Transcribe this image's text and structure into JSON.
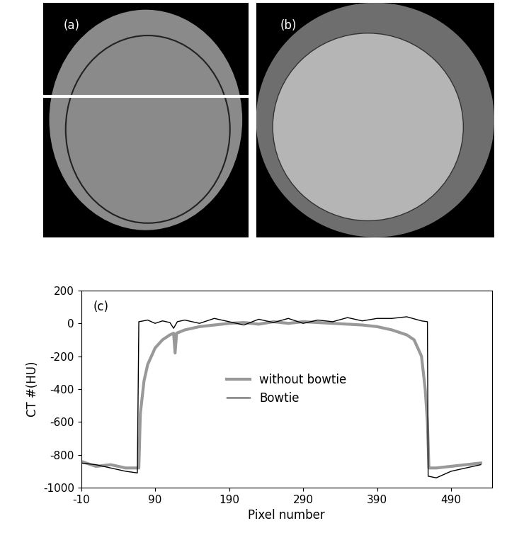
{
  "images": [
    {
      "label": "(a)"
    },
    {
      "label": "(b)"
    }
  ],
  "chart_data": {
    "type": "line",
    "panel_label": "(c)",
    "x_label": "Pixel number",
    "y_label": "CT #(HU)",
    "xlim": [
      -10,
      545
    ],
    "xticks": [
      -10,
      90,
      190,
      290,
      390,
      490
    ],
    "ylim": [
      -1000,
      200
    ],
    "yticks": [
      -1000,
      -800,
      -600,
      -400,
      -200,
      0,
      200
    ],
    "legend": "center",
    "series": [
      {
        "name": "without bowtie",
        "color": "#999999",
        "x": [
          -10,
          10,
          30,
          50,
          68,
          70,
          75,
          80,
          90,
          100,
          110,
          115,
          117,
          119,
          130,
          150,
          170,
          190,
          210,
          230,
          250,
          270,
          290,
          310,
          330,
          350,
          370,
          390,
          410,
          430,
          440,
          450,
          455,
          458,
          460,
          470,
          490,
          510,
          530
        ],
        "values": [
          -840,
          -870,
          -860,
          -880,
          -880,
          -550,
          -350,
          -250,
          -150,
          -100,
          -70,
          -60,
          -180,
          -60,
          -40,
          -20,
          -10,
          0,
          5,
          -5,
          10,
          0,
          10,
          5,
          0,
          -5,
          -10,
          -20,
          -40,
          -70,
          -100,
          -200,
          -400,
          -600,
          -880,
          -880,
          -870,
          -860,
          -850
        ]
      },
      {
        "name": "Bowtie",
        "color": "#000000",
        "x": [
          -10,
          10,
          30,
          50,
          66,
          68,
          80,
          90,
          100,
          110,
          115,
          120,
          130,
          150,
          170,
          190,
          210,
          230,
          250,
          270,
          290,
          310,
          330,
          350,
          370,
          390,
          410,
          430,
          450,
          458,
          459,
          470,
          490,
          510,
          530
        ],
        "values": [
          -850,
          -860,
          -880,
          -900,
          -910,
          10,
          20,
          0,
          15,
          5,
          -30,
          10,
          20,
          0,
          30,
          10,
          -10,
          25,
          5,
          30,
          0,
          20,
          10,
          35,
          15,
          30,
          30,
          40,
          15,
          10,
          -930,
          -940,
          -900,
          -880,
          -860
        ]
      }
    ]
  }
}
